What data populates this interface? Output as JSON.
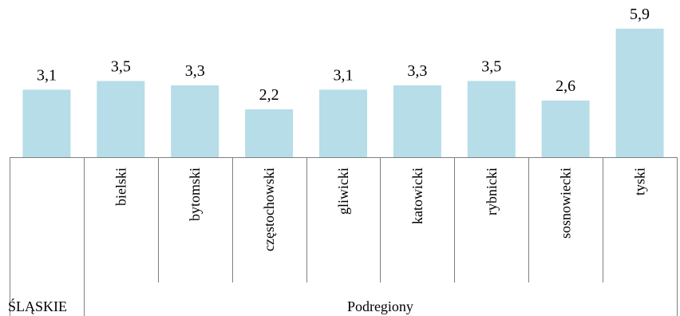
{
  "chart_data": {
    "type": "bar",
    "categories": [
      "",
      "bielski",
      "bytomski",
      "częstochowski",
      "gliwicki",
      "katowicki",
      "rybnicki",
      "sosnowiecki",
      "tyski"
    ],
    "values": [
      3.1,
      3.5,
      3.3,
      2.2,
      3.1,
      3.3,
      3.5,
      2.6,
      5.9
    ],
    "value_labels": [
      "3,1",
      "3,5",
      "3,3",
      "2,2",
      "3,1",
      "3,3",
      "3,5",
      "2,6",
      "5,9"
    ],
    "groups": [
      {
        "label": "ŚLĄSKIE",
        "span": [
          0,
          0
        ]
      },
      {
        "label": "Podregiony",
        "span": [
          1,
          8
        ]
      }
    ],
    "title": "",
    "xlabel": "",
    "ylabel": "",
    "ylim": [
      0,
      6.2
    ],
    "grid": false,
    "legend": "none",
    "bar_color": "#b6dde8",
    "axis_color": "#808080"
  }
}
